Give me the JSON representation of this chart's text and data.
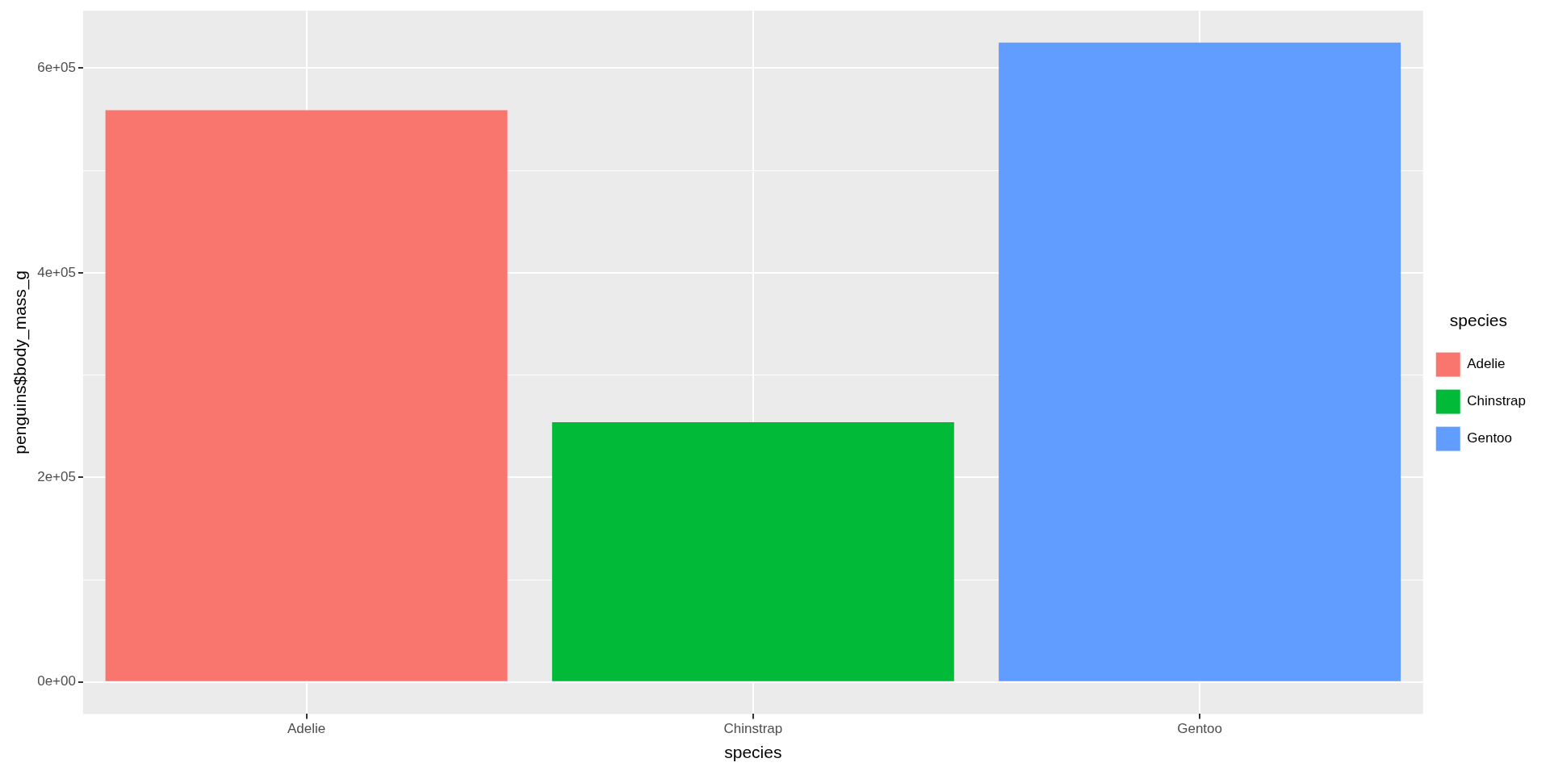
{
  "chart_data": {
    "type": "bar",
    "categories": [
      "Adelie",
      "Chinstrap",
      "Gentoo"
    ],
    "series": [
      {
        "name": "Adelie",
        "color": "#f8766d",
        "values": [
          559000,
          null,
          null
        ]
      },
      {
        "name": "Chinstrap",
        "color": "#00ba38",
        "values": [
          null,
          254000,
          null
        ]
      },
      {
        "name": "Gentoo",
        "color": "#619cff",
        "values": [
          null,
          null,
          625000
        ]
      }
    ],
    "xlabel": "species",
    "ylabel": "penguins$body_mass_g",
    "legend_title": "species",
    "legend": "right",
    "grid": true,
    "ylim": [
      -31250,
      656250
    ],
    "yticks": [
      {
        "value": 0,
        "label": "0e+00"
      },
      {
        "value": 100000,
        "label": null
      },
      {
        "value": 200000,
        "label": "2e+05"
      },
      {
        "value": 300000,
        "label": null
      },
      {
        "value": 400000,
        "label": "4e+05"
      },
      {
        "value": 500000,
        "label": null
      },
      {
        "value": 600000,
        "label": "6e+05"
      }
    ]
  }
}
